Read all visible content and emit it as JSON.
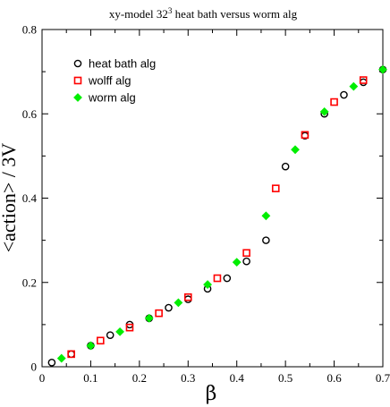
{
  "chart_data": {
    "type": "scatter",
    "title": "xy-model 32",
    "title_sup": "3",
    "title_suffix": " heat bath versus worm alg",
    "xlabel": "β",
    "ylabel": "<action> / 3V",
    "xlim": [
      0,
      0.7
    ],
    "ylim": [
      0,
      0.8
    ],
    "xticks": [
      0,
      0.1,
      0.2,
      0.3,
      0.4,
      0.5,
      0.6,
      0.7
    ],
    "yticks": [
      0,
      0.2,
      0.4,
      0.6,
      0.8
    ],
    "xtick_labels": [
      "0",
      "0.1",
      "0.2",
      "0.3",
      "0.4",
      "0.5",
      "0.6",
      "0.7"
    ],
    "ytick_labels": [
      "0",
      "0.2",
      "0.4",
      "0.6",
      "0.8"
    ],
    "grid": false,
    "legend_position": "top-left",
    "series": [
      {
        "name": "heat bath alg",
        "marker": "circle",
        "color": "#000000",
        "x": [
          0.02,
          0.06,
          0.1,
          0.14,
          0.18,
          0.22,
          0.26,
          0.3,
          0.34,
          0.38,
          0.42,
          0.46,
          0.5,
          0.54,
          0.58,
          0.62,
          0.66,
          0.7
        ],
        "y": [
          0.01,
          0.03,
          0.05,
          0.075,
          0.1,
          0.115,
          0.14,
          0.16,
          0.185,
          0.21,
          0.25,
          0.3,
          0.475,
          0.548,
          0.6,
          0.645,
          0.675,
          0.705
        ]
      },
      {
        "name": "wolff alg",
        "marker": "square",
        "color": "#ff0000",
        "x": [
          0.06,
          0.12,
          0.18,
          0.24,
          0.3,
          0.36,
          0.42,
          0.48,
          0.54,
          0.6,
          0.66
        ],
        "y": [
          0.03,
          0.062,
          0.093,
          0.127,
          0.165,
          0.21,
          0.27,
          0.423,
          0.55,
          0.628,
          0.68
        ]
      },
      {
        "name": "worm alg",
        "marker": "diamond",
        "color": "#00ee00",
        "x": [
          0.04,
          0.1,
          0.16,
          0.22,
          0.28,
          0.34,
          0.4,
          0.46,
          0.52,
          0.58,
          0.64,
          0.7
        ],
        "y": [
          0.02,
          0.05,
          0.083,
          0.115,
          0.152,
          0.195,
          0.248,
          0.358,
          0.515,
          0.605,
          0.665,
          0.705
        ]
      }
    ]
  }
}
